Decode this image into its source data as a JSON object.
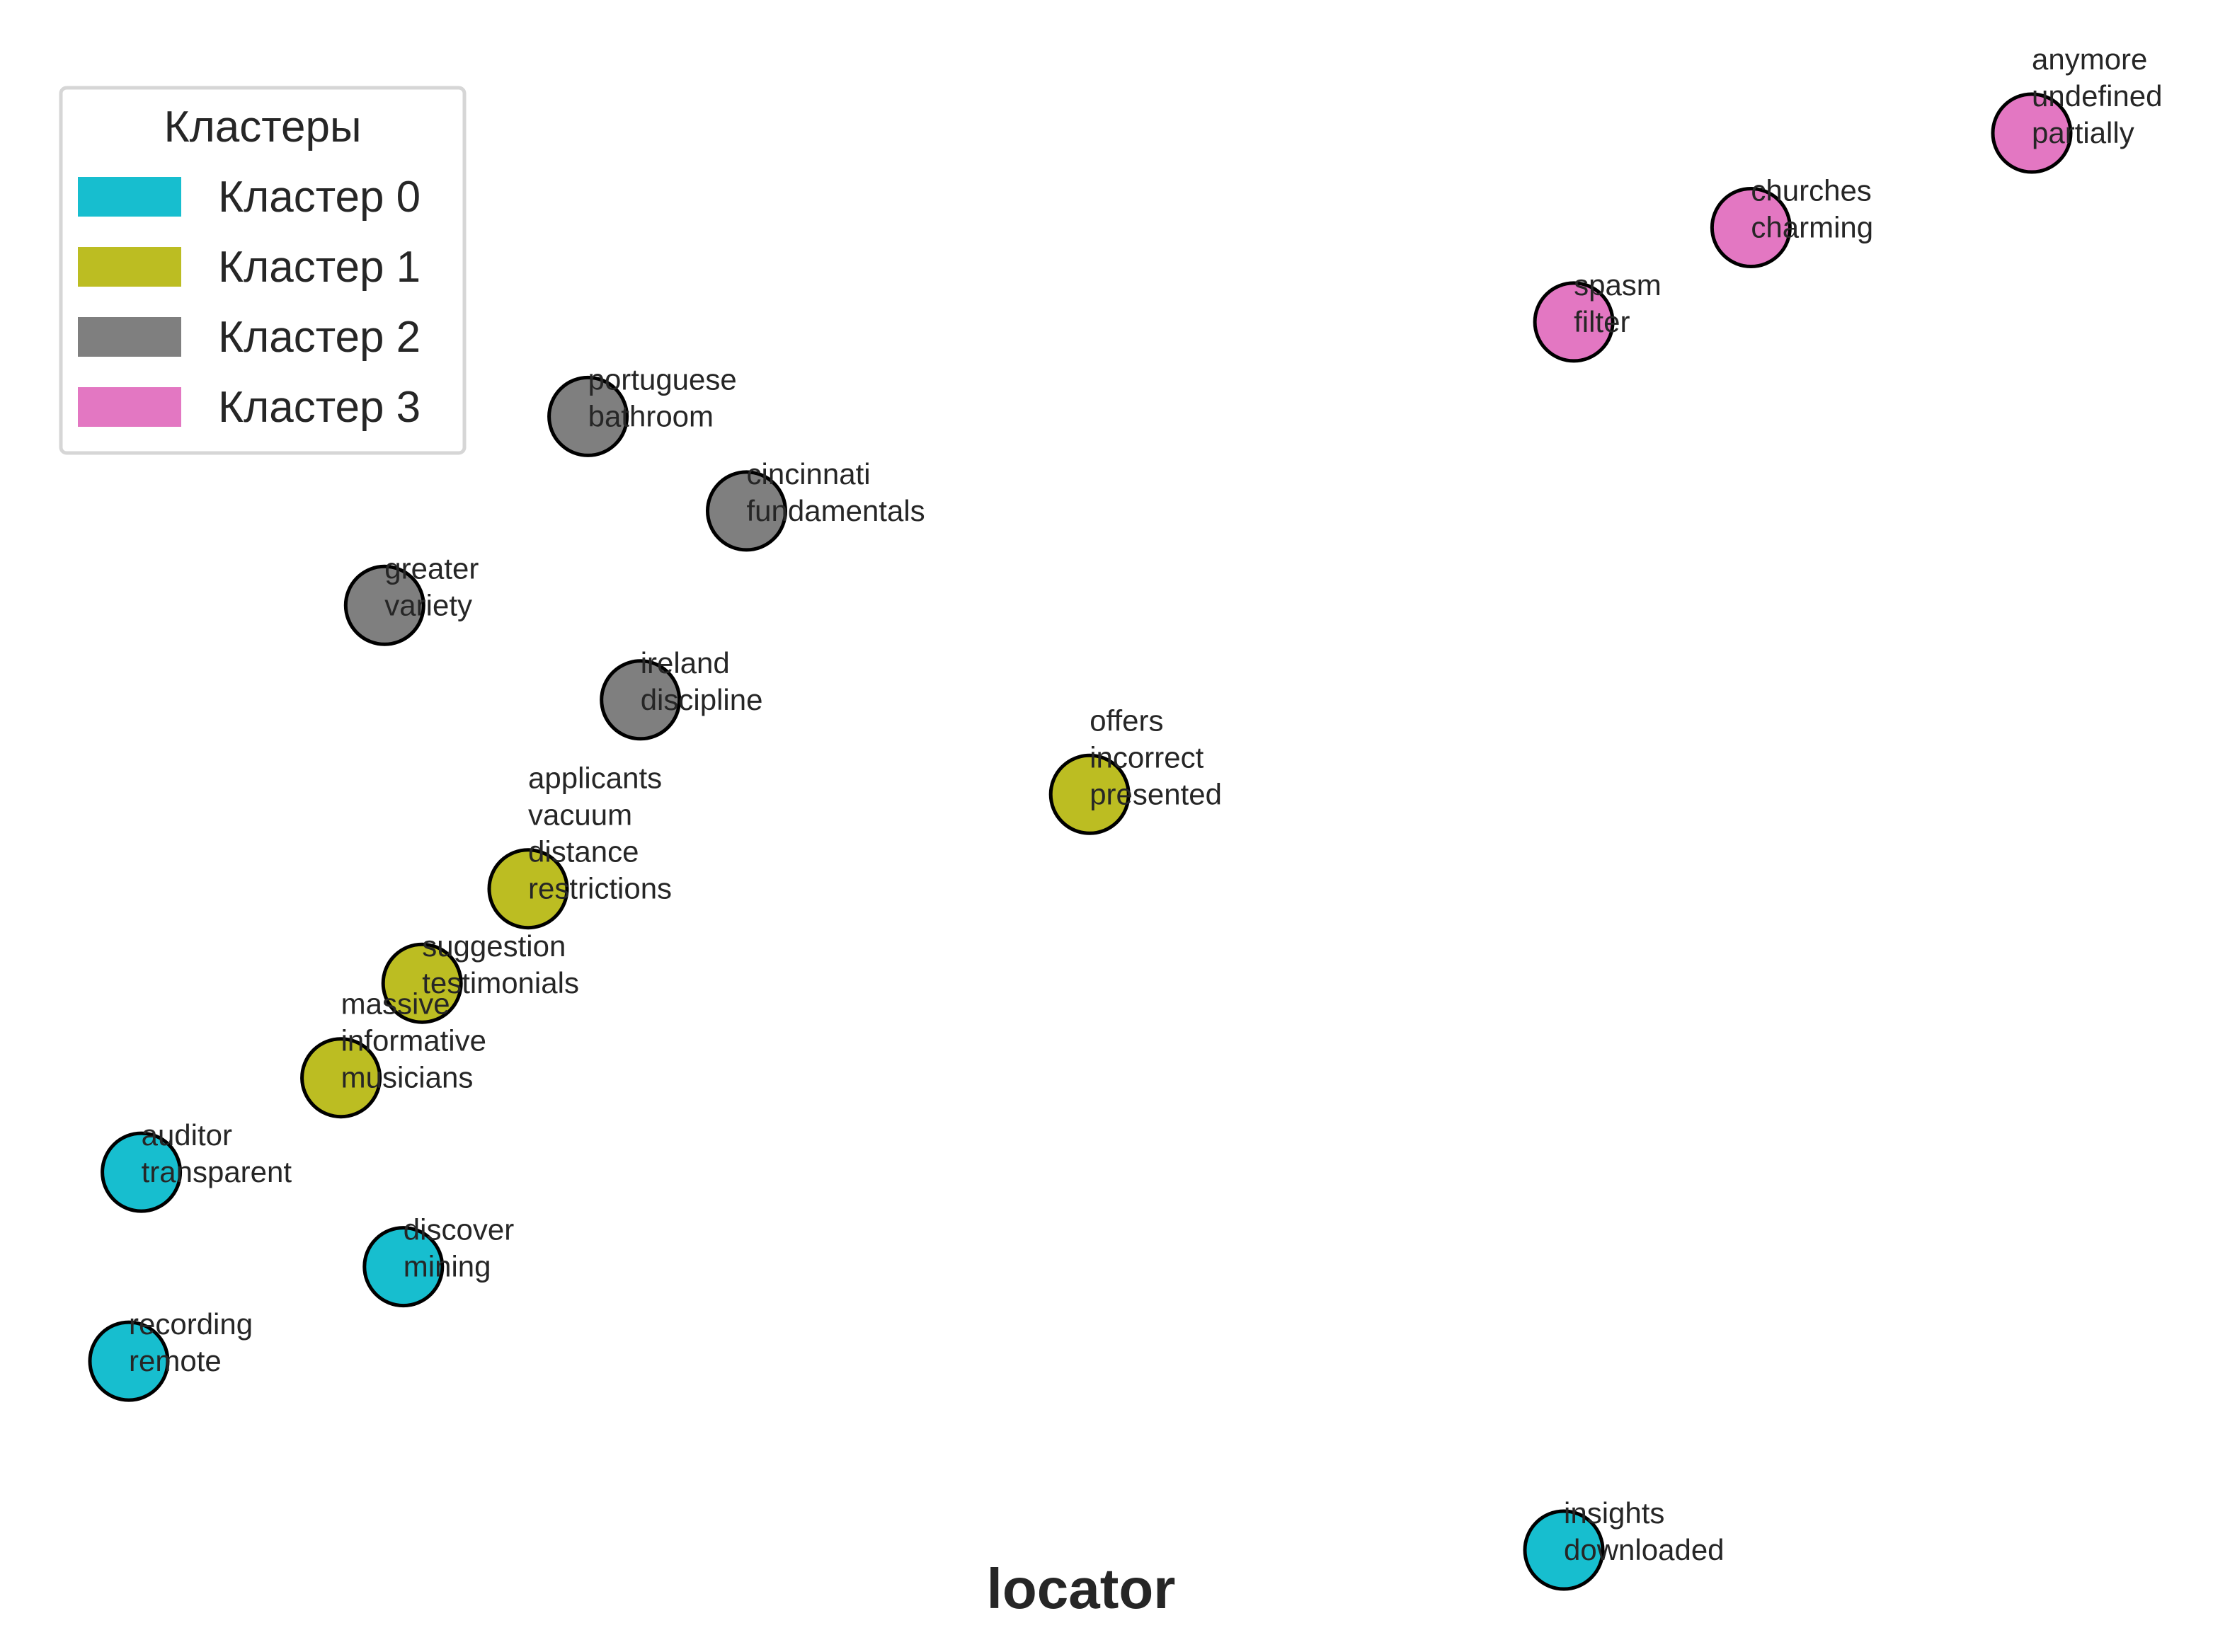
{
  "chart_data": {
    "type": "scatter",
    "title": "",
    "xlabel": "locator",
    "ylabel": "",
    "legend": {
      "title": "Кластеры",
      "placement": "top-left",
      "entries": [
        {
          "label": "Кластер 0",
          "color": "#17becf"
        },
        {
          "label": "Кластер 1",
          "color": "#bcbd22"
        },
        {
          "label": "Кластер 2",
          "color": "#7f7f7f"
        },
        {
          "label": "Кластер 3",
          "color": "#e377c2"
        }
      ]
    },
    "grid": false,
    "axes_visible": false,
    "points": [
      {
        "x": 0.5,
        "y": 2.0,
        "cluster": 0,
        "label_lines": [
          "recording",
          "remote"
        ]
      },
      {
        "x": 0.6,
        "y": 3.0,
        "cluster": 0,
        "label_lines": [
          "auditor",
          "transparent"
        ]
      },
      {
        "x": 2.7,
        "y": 2.5,
        "cluster": 0,
        "label_lines": [
          "discover",
          "mining"
        ]
      },
      {
        "x": 12.0,
        "y": 1.0,
        "cluster": 0,
        "label_lines": [
          "insights",
          "downloaded"
        ]
      },
      {
        "x": 2.2,
        "y": 3.5,
        "cluster": 1,
        "label_lines": [
          "massive",
          "informative",
          "musicians"
        ]
      },
      {
        "x": 2.85,
        "y": 4.0,
        "cluster": 1,
        "label_lines": [
          "suggestion",
          "testimonials"
        ]
      },
      {
        "x": 3.7,
        "y": 4.5,
        "cluster": 1,
        "label_lines": [
          "applicants",
          "vacuum",
          "distance",
          "restrictions"
        ]
      },
      {
        "x": 8.2,
        "y": 5.0,
        "cluster": 1,
        "label_lines": [
          "offers",
          "incorrect",
          "presented"
        ]
      },
      {
        "x": 4.6,
        "y": 5.5,
        "cluster": 2,
        "label_lines": [
          "ireland",
          "discipline"
        ]
      },
      {
        "x": 2.55,
        "y": 6.0,
        "cluster": 2,
        "label_lines": [
          "greater",
          "variety"
        ]
      },
      {
        "x": 5.45,
        "y": 6.5,
        "cluster": 2,
        "label_lines": [
          "cincinnati",
          "fundamentals"
        ]
      },
      {
        "x": 4.18,
        "y": 7.0,
        "cluster": 2,
        "label_lines": [
          "portuguese",
          "bathroom"
        ]
      },
      {
        "x": 12.08,
        "y": 7.5,
        "cluster": 3,
        "label_lines": [
          "spasm",
          "filter"
        ]
      },
      {
        "x": 13.5,
        "y": 8.0,
        "cluster": 3,
        "label_lines": [
          "churches",
          "charming"
        ]
      },
      {
        "x": 15.75,
        "y": 8.5,
        "cluster": 3,
        "label_lines": [
          "anymore",
          "undefined",
          "partially"
        ]
      }
    ]
  }
}
